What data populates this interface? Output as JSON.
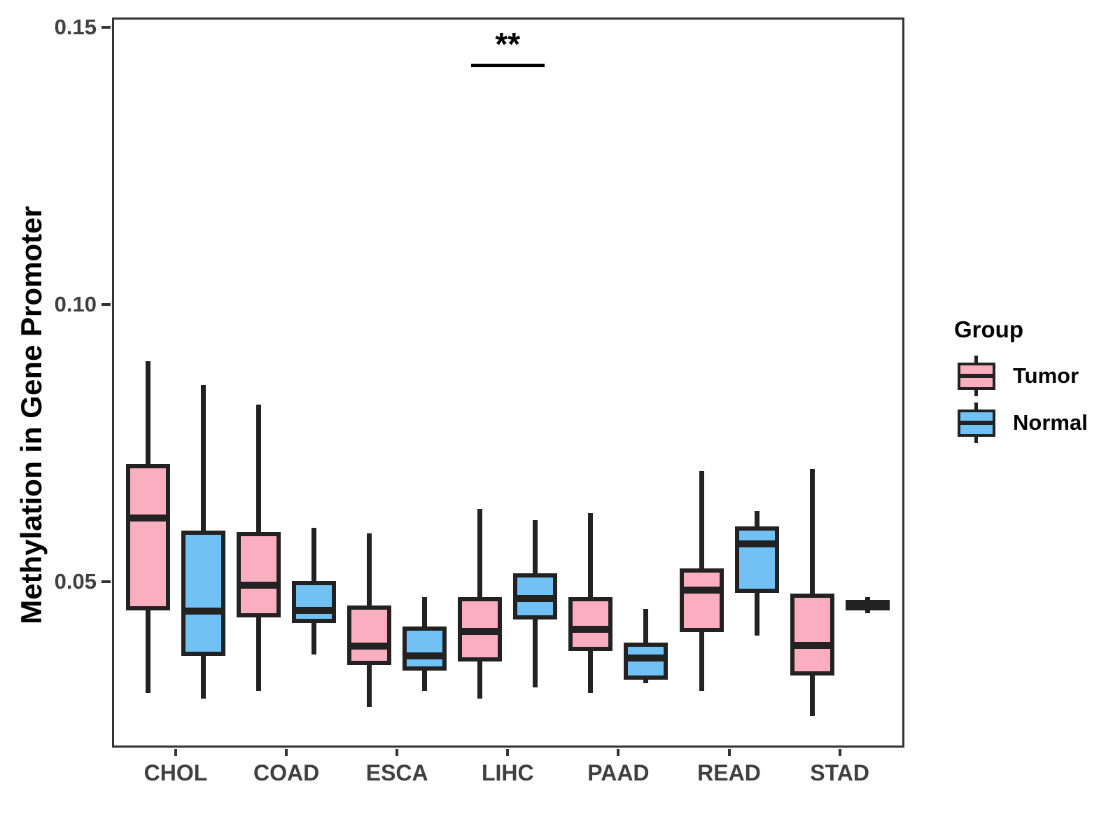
{
  "chart_data": {
    "type": "boxplot",
    "title": "",
    "xlabel": "",
    "ylabel": "Methylation in Gene Promoter",
    "categories": [
      "CHOL",
      "COAD",
      "ESCA",
      "LIHC",
      "PAAD",
      "READ",
      "STAD"
    ],
    "y_axis": {
      "range": [
        0.0201,
        0.1518
      ],
      "ticks": [
        {
          "value": 0.05,
          "label": "0.05"
        },
        {
          "value": 0.1,
          "label": "0.10"
        },
        {
          "value": 0.15,
          "label": "0.15"
        }
      ],
      "grid": false
    },
    "series": [
      {
        "name": "Tumor",
        "fill": "#FBAEC0",
        "stroke": "#222222",
        "boxes": [
          {
            "category": "CHOL",
            "min": 0.03,
            "q1": 0.0449,
            "median": 0.0615,
            "q3": 0.0713,
            "max": 0.0898
          },
          {
            "category": "COAD",
            "min": 0.0303,
            "q1": 0.0436,
            "median": 0.0494,
            "q3": 0.059,
            "max": 0.082
          },
          {
            "category": "ESCA",
            "min": 0.0274,
            "q1": 0.035,
            "median": 0.0384,
            "q3": 0.0457,
            "max": 0.0587
          },
          {
            "category": "LIHC",
            "min": 0.0289,
            "q1": 0.0356,
            "median": 0.041,
            "q3": 0.0472,
            "max": 0.0631
          },
          {
            "category": "PAAD",
            "min": 0.0299,
            "q1": 0.0375,
            "median": 0.0415,
            "q3": 0.0473,
            "max": 0.0624
          },
          {
            "category": "READ",
            "min": 0.0303,
            "q1": 0.0409,
            "median": 0.0485,
            "q3": 0.0524,
            "max": 0.07
          },
          {
            "category": "STAD",
            "min": 0.0258,
            "q1": 0.0331,
            "median": 0.0385,
            "q3": 0.0479,
            "max": 0.0703
          }
        ]
      },
      {
        "name": "Normal",
        "fill": "#71C1F5",
        "stroke": "#222222",
        "boxes": [
          {
            "category": "CHOL",
            "min": 0.029,
            "q1": 0.0366,
            "median": 0.0447,
            "q3": 0.0593,
            "max": 0.0855
          },
          {
            "category": "COAD",
            "min": 0.0369,
            "q1": 0.0426,
            "median": 0.0448,
            "q3": 0.0501,
            "max": 0.0598
          },
          {
            "category": "ESCA",
            "min": 0.0303,
            "q1": 0.034,
            "median": 0.0366,
            "q3": 0.0419,
            "max": 0.0472
          },
          {
            "category": "LIHC",
            "min": 0.0309,
            "q1": 0.0432,
            "median": 0.047,
            "q3": 0.0516,
            "max": 0.0612
          },
          {
            "category": "PAAD",
            "min": 0.0317,
            "q1": 0.0324,
            "median": 0.0362,
            "q3": 0.039,
            "max": 0.0451
          },
          {
            "category": "READ",
            "min": 0.0403,
            "q1": 0.048,
            "median": 0.0568,
            "q3": 0.06,
            "max": 0.0628
          },
          {
            "category": "STAD",
            "min": 0.0443,
            "q1": 0.0448,
            "median": 0.0458,
            "q3": 0.0467,
            "max": 0.0472
          }
        ]
      }
    ],
    "annotation": {
      "text": "**",
      "category": "LIHC",
      "bar_y": 0.1435
    },
    "legend": {
      "title": "Group",
      "position": "right",
      "entries": [
        {
          "label": "Tumor",
          "fill": "#FBAEC0"
        },
        {
          "label": "Normal",
          "fill": "#71C1F5"
        }
      ]
    }
  }
}
